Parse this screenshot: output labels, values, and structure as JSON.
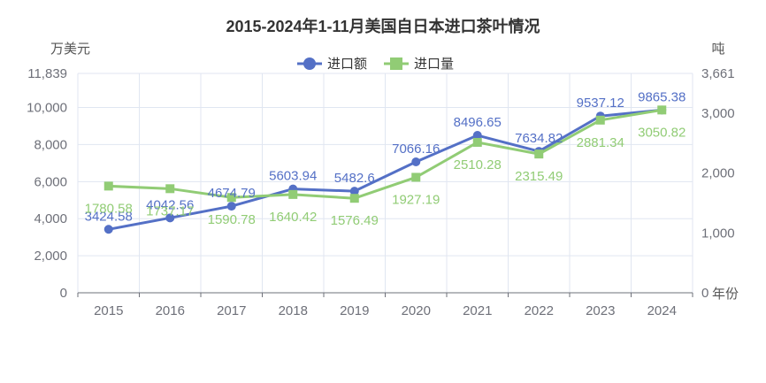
{
  "chart_data": {
    "type": "line",
    "title": "2015-2024年1-11月美国自日本进口茶叶情况",
    "x_axis_name": "年份",
    "categories": [
      "2015",
      "2016",
      "2017",
      "2018",
      "2019",
      "2020",
      "2021",
      "2022",
      "2023",
      "2024"
    ],
    "y_left": {
      "name": "万美元",
      "min": 0,
      "max": 11839,
      "ticks": [
        0,
        2000,
        4000,
        6000,
        8000,
        10000,
        11839
      ],
      "tick_labels": [
        "0",
        "2,000",
        "4,000",
        "6,000",
        "8,000",
        "10,000",
        "11,839"
      ]
    },
    "y_right": {
      "name": "吨",
      "min": 0,
      "max": 3661,
      "ticks": [
        0,
        1000,
        2000,
        3000,
        3661
      ],
      "tick_labels": [
        "0",
        "1,000",
        "2,000",
        "3,000",
        "3,661"
      ]
    },
    "grid": true,
    "legend_position": "top-center",
    "series": [
      {
        "name": "进口额",
        "axis": "left",
        "marker": "circle",
        "color": "#5470c6",
        "values": [
          3424.58,
          4042.56,
          4674.79,
          5603.94,
          5482.6,
          7066.16,
          8496.65,
          7634.82,
          9537.12,
          9865.38
        ],
        "labels": [
          "3424.58",
          "4042.56",
          "4674.79",
          "5603.94",
          "5482.6",
          "7066.16",
          "8496.65",
          "7634.82",
          "9537.12",
          "9865.38"
        ]
      },
      {
        "name": "进口量",
        "axis": "right",
        "marker": "square",
        "color": "#91cc75",
        "values": [
          1780.58,
          1737.17,
          1590.78,
          1640.42,
          1576.49,
          1927.19,
          2510.28,
          2315.49,
          2881.34,
          3050.82
        ],
        "labels": [
          "1780.58",
          "1737.17",
          "1590.78",
          "1640.42",
          "1576.49",
          "1927.19",
          "2510.28",
          "2315.49",
          "2881.34",
          "3050.82"
        ]
      }
    ]
  }
}
